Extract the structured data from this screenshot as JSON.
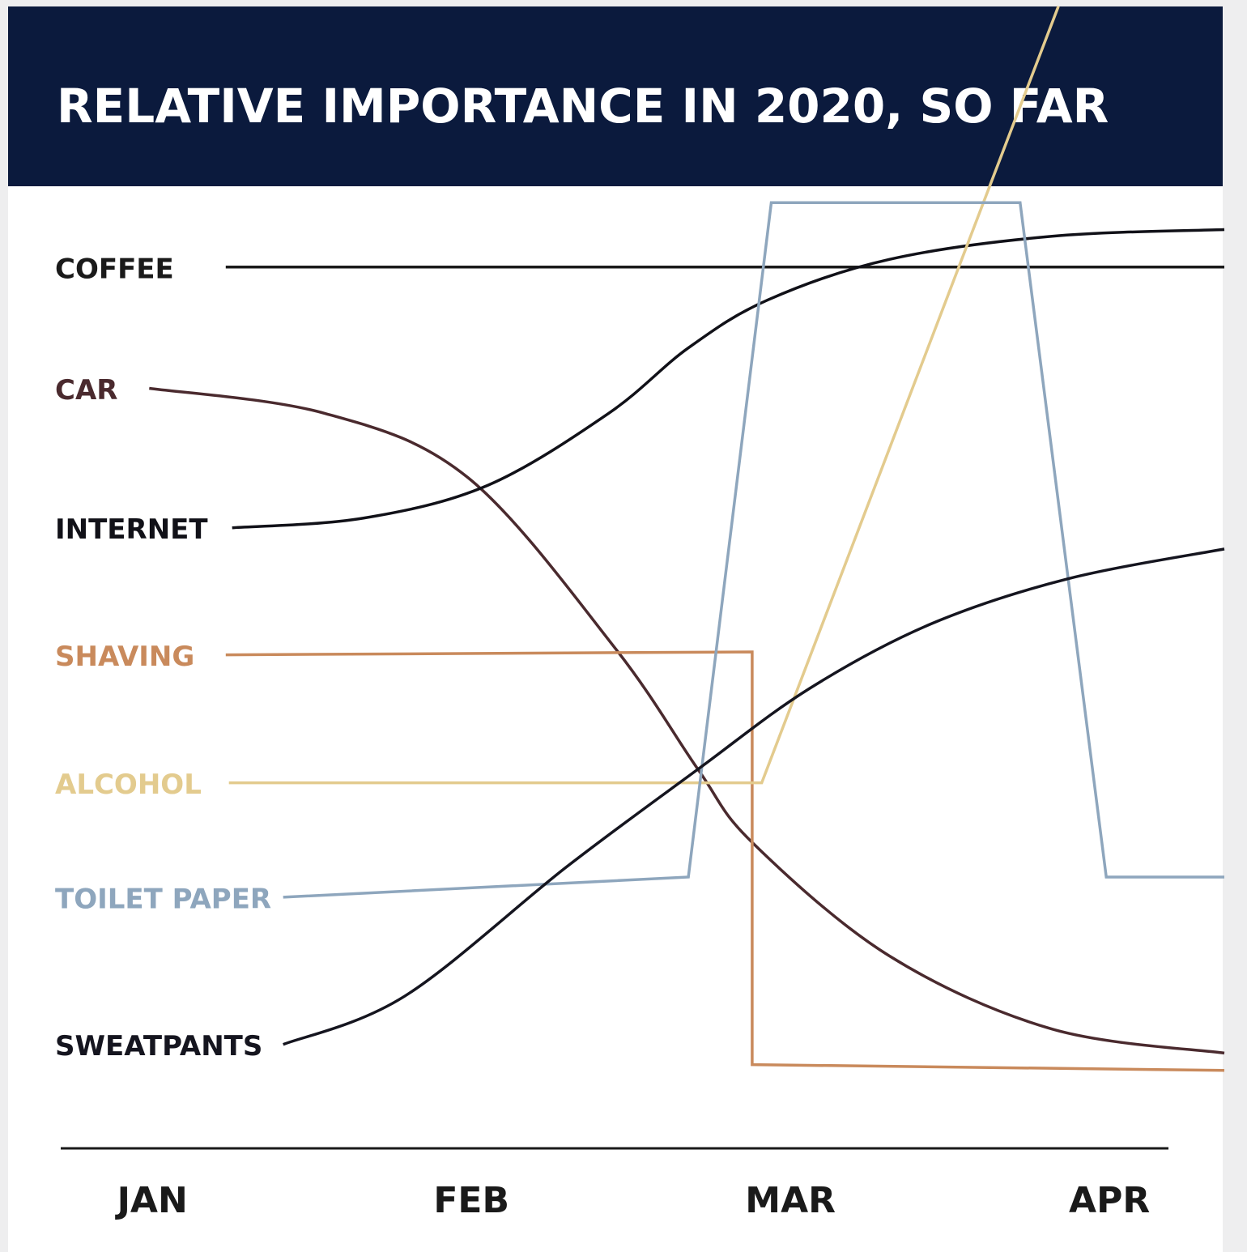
{
  "chart_data": {
    "type": "line",
    "title": "RELATIVE IMPORTANCE IN 2020, SO FAR",
    "xlim": [
      -0.3,
      3.355
    ],
    "xticks": [
      {
        "value": 0,
        "label": "JAN"
      },
      {
        "value": 1,
        "label": "FEB"
      },
      {
        "value": 2,
        "label": "MAR"
      },
      {
        "value": 3,
        "label": "APR"
      }
    ],
    "ylim": [
      0,
      100
    ],
    "series": [
      {
        "name": "COFFEE",
        "color": "#1a1a1a",
        "smooth": false,
        "x": [
          0.23,
          3.36
        ],
        "values": [
          91.6,
          91.6
        ]
      },
      {
        "name": "CAR",
        "color": "#4a2a2e",
        "smooth": true,
        "x": [
          -0.01,
          0.54,
          0.99,
          1.45,
          1.71,
          1.88,
          2.31,
          2.82,
          3.36
        ],
        "values": [
          79.0,
          76.4,
          69.7,
          52.0,
          39.4,
          31.8,
          20.0,
          12.4,
          9.9
        ]
      },
      {
        "name": "INTERNET",
        "color": "#111118",
        "smooth": true,
        "x": [
          0.25,
          0.66,
          1.05,
          1.43,
          1.68,
          1.93,
          2.31,
          2.82,
          3.36
        ],
        "values": [
          64.5,
          65.5,
          68.9,
          76.4,
          83.2,
          88.2,
          92.4,
          94.8,
          95.5
        ]
      },
      {
        "name": "SHAVING",
        "color": "#c98a5c",
        "smooth": false,
        "x": [
          0.23,
          1.88,
          1.88,
          3.36
        ],
        "values": [
          51.3,
          51.6,
          8.7,
          8.1
        ]
      },
      {
        "name": "ALCOHOL",
        "color": "#e3cb8e",
        "smooth": false,
        "x": [
          0.24,
          1.91,
          2.84
        ],
        "values": [
          38.0,
          38.0,
          118.7
        ]
      },
      {
        "name": "TOILET PAPER",
        "color": "#8ea6bd",
        "smooth": false,
        "x": [
          0.41,
          1.68,
          1.94,
          2.72,
          2.99,
          3.36
        ],
        "values": [
          26.1,
          28.2,
          98.3,
          98.3,
          28.2,
          28.2
        ]
      },
      {
        "name": "SWEATPANTS",
        "color": "#15151f",
        "smooth": true,
        "x": [
          0.41,
          0.79,
          1.3,
          1.71,
          2.06,
          2.44,
          2.87,
          3.36
        ],
        "values": [
          10.8,
          15.8,
          29.3,
          39.4,
          47.8,
          54.5,
          59.2,
          62.3
        ]
      }
    ]
  }
}
